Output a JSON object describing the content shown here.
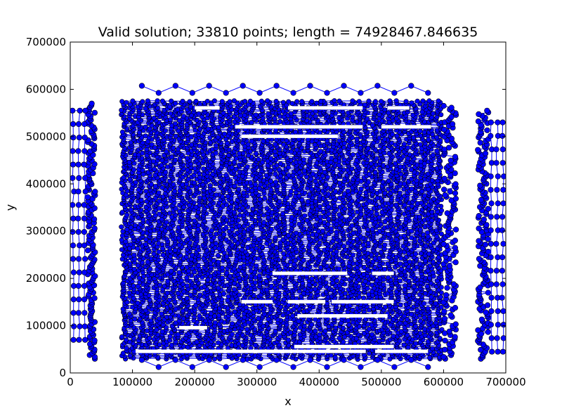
{
  "chart_data": {
    "type": "scatter",
    "title": "Valid solution; 33810 points; length = 74928467.846635",
    "xlabel": "x",
    "ylabel": "y",
    "xlim": [
      0,
      700000
    ],
    "ylim": [
      0,
      700000
    ],
    "xticks": [
      0,
      100000,
      200000,
      300000,
      400000,
      500000,
      600000,
      700000
    ],
    "yticks": [
      0,
      100000,
      200000,
      300000,
      400000,
      500000,
      600000,
      700000
    ],
    "xtick_labels": [
      "0",
      "100000",
      "200000",
      "300000",
      "400000",
      "500000",
      "600000",
      "700000"
    ],
    "ytick_labels": [
      "0",
      "100000",
      "200000",
      "300000",
      "400000",
      "500000",
      "600000",
      "700000"
    ],
    "grid": false,
    "colors": {
      "marker": "#0000ff",
      "marker_edge": "#000000",
      "line": "#0000ff"
    },
    "series": [
      {
        "style": "line-with-markers",
        "regions": [
          {
            "x_range": [
              82000,
              600000
            ],
            "y_range": [
              30000,
              575000
            ],
            "density": "very-dense"
          },
          {
            "x_range": [
              28000,
              40000
            ],
            "y_range": [
              30000,
              570000
            ],
            "density": "dense-column"
          },
          {
            "x_range": [
              600000,
              620000
            ],
            "y_range": [
              30000,
              565000
            ],
            "density": "dense-column"
          },
          {
            "x_range": [
              655000,
              672000
            ],
            "y_range": [
              30000,
              555000
            ],
            "density": "dense-column"
          },
          {
            "x_range": [
              0,
              28000
            ],
            "y_range": [
              70000,
              555000
            ],
            "density": "sparse-grid"
          },
          {
            "x_range": [
              672000,
              700000
            ],
            "y_range": [
              45000,
              530000
            ],
            "density": "sparse-grid"
          },
          {
            "x_range": [
              115000,
              575000
            ],
            "y_range": [
              585000,
              610000
            ],
            "density": "sparse-row"
          },
          {
            "x_range": [
              115000,
              575000
            ],
            "y_range": [
              5000,
              30000
            ],
            "density": "sparse-row"
          }
        ],
        "gaps": [
          {
            "x_range": [
              200000,
              240000
            ],
            "y": 560000
          },
          {
            "x_range": [
              350000,
              470000
            ],
            "y": 560000
          },
          {
            "x_range": [
              510000,
              545000
            ],
            "y": 560000
          },
          {
            "x_range": [
              265000,
              470000
            ],
            "y": 520000
          },
          {
            "x_range": [
              500000,
              580000
            ],
            "y": 520000
          },
          {
            "x_range": [
              275000,
              430000
            ],
            "y": 500000
          },
          {
            "x_range": [
              325000,
              445000
            ],
            "y": 210000
          },
          {
            "x_range": [
              485000,
              520000
            ],
            "y": 210000
          },
          {
            "x_range": [
              275000,
              325000
            ],
            "y": 150000
          },
          {
            "x_range": [
              350000,
              410000
            ],
            "y": 150000
          },
          {
            "x_range": [
              420000,
              520000
            ],
            "y": 150000
          },
          {
            "x_range": [
              365000,
              510000
            ],
            "y": 120000
          },
          {
            "x_range": [
              175000,
              220000
            ],
            "y": 95000
          },
          {
            "x_range": [
              360000,
              520000
            ],
            "y": 55000
          },
          {
            "x_range": [
              105000,
              475000
            ],
            "y": 45000
          },
          {
            "x_range": [
              490000,
              575000
            ],
            "y": 45000
          }
        ]
      }
    ]
  }
}
